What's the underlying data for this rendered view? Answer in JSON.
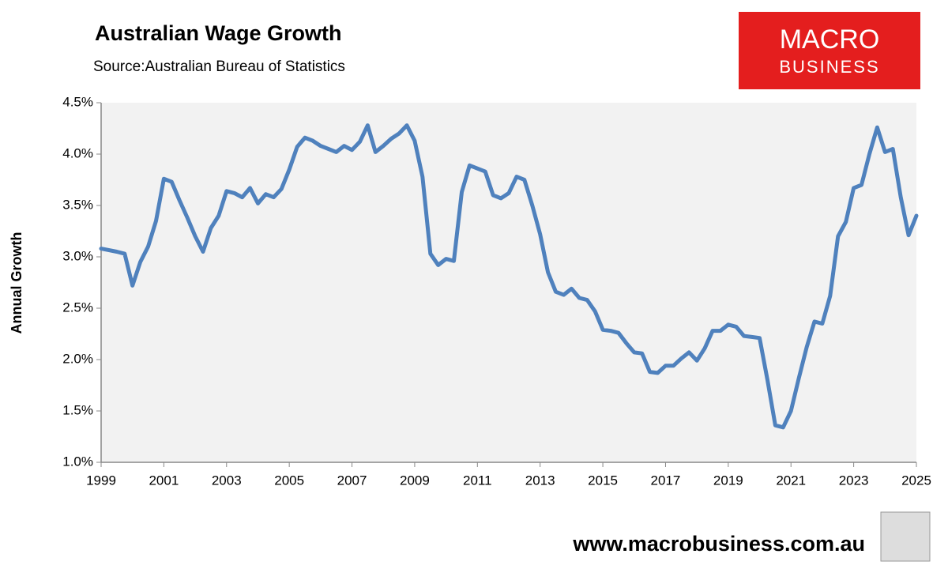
{
  "chart_data": {
    "type": "line",
    "title": "Australian Wage Growth",
    "subtitle": "Source:Australian Bureau of Statistics",
    "ylabel": "Annual Growth",
    "x": [
      1999,
      1999.5,
      1999.75,
      2000,
      2000.25,
      2000.5,
      2000.75,
      2001,
      2001.25,
      2001.5,
      2001.75,
      2002,
      2002.25,
      2002.5,
      2002.75,
      2003,
      2003.25,
      2003.5,
      2003.75,
      2004,
      2004.25,
      2004.5,
      2004.75,
      2005,
      2005.25,
      2005.5,
      2005.75,
      2006,
      2006.25,
      2006.5,
      2006.75,
      2007,
      2007.25,
      2007.5,
      2007.75,
      2008,
      2008.25,
      2008.5,
      2008.75,
      2009,
      2009.25,
      2009.5,
      2009.75,
      2010,
      2010.25,
      2010.5,
      2010.75,
      2011,
      2011.25,
      2011.5,
      2011.75,
      2012,
      2012.25,
      2012.5,
      2012.75,
      2013,
      2013.25,
      2013.5,
      2013.75,
      2014,
      2014.25,
      2014.5,
      2014.75,
      2015,
      2015.25,
      2015.5,
      2015.75,
      2016,
      2016.25,
      2016.5,
      2016.75,
      2017,
      2017.25,
      2017.5,
      2017.75,
      2018,
      2018.25,
      2018.5,
      2018.75,
      2019,
      2019.25,
      2019.5,
      2019.75,
      2020,
      2020.25,
      2020.5,
      2020.75,
      2021,
      2021.25,
      2021.5,
      2021.75,
      2022,
      2022.25,
      2022.5,
      2022.75,
      2023,
      2023.25,
      2023.5,
      2023.75,
      2024,
      2024.25,
      2024.5,
      2024.75,
      2025
    ],
    "series": [
      {
        "name": "Annual Growth",
        "color": "#4f81bd",
        "values": [
          3.08,
          3.05,
          3.03,
          2.72,
          2.95,
          3.1,
          3.35,
          3.76,
          3.73,
          3.55,
          3.38,
          3.2,
          3.05,
          3.28,
          3.4,
          3.64,
          3.62,
          3.58,
          3.67,
          3.52,
          3.61,
          3.58,
          3.66,
          3.85,
          4.07,
          4.16,
          4.13,
          4.08,
          4.05,
          4.02,
          4.08,
          4.04,
          4.12,
          4.28,
          4.02,
          4.08,
          4.15,
          4.2,
          4.28,
          4.13,
          3.78,
          3.03,
          2.92,
          2.98,
          2.96,
          3.63,
          3.89,
          3.86,
          3.83,
          3.6,
          3.57,
          3.62,
          3.78,
          3.75,
          3.5,
          3.22,
          2.85,
          2.66,
          2.63,
          2.69,
          2.6,
          2.58,
          2.47,
          2.29,
          2.28,
          2.26,
          2.16,
          2.07,
          2.06,
          1.88,
          1.87,
          1.94,
          1.94,
          2.01,
          2.07,
          1.99,
          2.11,
          2.28,
          2.28,
          2.34,
          2.32,
          2.23,
          2.22,
          2.21,
          1.8,
          1.36,
          1.34,
          1.5,
          1.82,
          2.12,
          2.37,
          2.35,
          2.62,
          3.2,
          3.34,
          3.67,
          3.7,
          4.0,
          4.26,
          4.02,
          4.05,
          3.58,
          3.21,
          3.4
        ]
      }
    ],
    "xlim": [
      1999,
      2025
    ],
    "xticks": [
      1999,
      2001,
      2003,
      2005,
      2007,
      2009,
      2011,
      2013,
      2015,
      2017,
      2019,
      2021,
      2023,
      2025
    ],
    "ylim": [
      1.0,
      4.5
    ],
    "yticks": [
      {
        "value": 1.0,
        "label": "1.0%"
      },
      {
        "value": 1.5,
        "label": "1.5%"
      },
      {
        "value": 2.0,
        "label": "2.0%"
      },
      {
        "value": 2.5,
        "label": "2.5%"
      },
      {
        "value": 3.0,
        "label": "3.0%"
      },
      {
        "value": 3.5,
        "label": "3.5%"
      },
      {
        "value": 4.0,
        "label": "4.0%"
      },
      {
        "value": 4.5,
        "label": "4.5%"
      }
    ],
    "grid": false
  },
  "logo": {
    "line1": "MACRO",
    "line2": "BUSINESS"
  },
  "footer": "www.macrobusiness.com.au"
}
